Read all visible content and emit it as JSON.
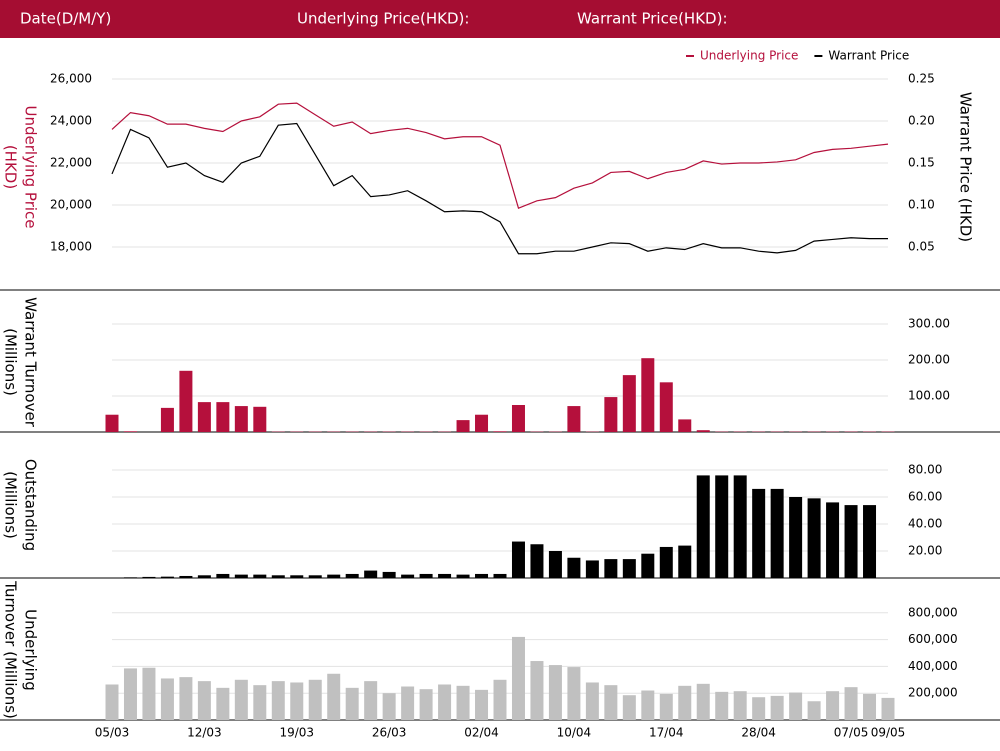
{
  "header": {
    "labels": [
      "Date(D/M/Y)",
      "Underlying Price(HKD):",
      "Warrant Price(HKD):"
    ]
  },
  "chart_data": [
    {
      "type": "line",
      "ylabel": [
        "Underlying Price",
        "(HKD)"
      ],
      "y2label": "Warrant  Price (HKD)",
      "ylim": [
        17000,
        27000
      ],
      "yticks": [
        {
          "value": 18000,
          "label": "18,000"
        },
        {
          "value": 20000,
          "label": "20,000"
        },
        {
          "value": 22000,
          "label": "22,000"
        },
        {
          "value": 24000,
          "label": "24,000"
        },
        {
          "value": 26000,
          "label": "26,000"
        }
      ],
      "y2lim": [
        0.025,
        0.275
      ],
      "y2ticks": [
        0.05,
        {
          "value": 0.1,
          "label": "0.10"
        },
        0.15,
        {
          "value": 0.2,
          "label": "0.20"
        },
        0.25
      ],
      "grid": true,
      "legend": "top-right",
      "series": [
        {
          "name": "Underlying Price",
          "color": "#b5103c",
          "values": [
            23600,
            24400,
            24250,
            23850,
            23850,
            23650,
            23500,
            24000,
            24200,
            24800,
            24850,
            24300,
            23750,
            23950,
            23400,
            23550,
            23650,
            23450,
            23150,
            23250,
            23250,
            22850,
            19850,
            20200,
            20350,
            20800,
            21050,
            21550,
            21600,
            21250,
            21550,
            21700,
            22100,
            21950,
            22000,
            22000,
            22050,
            22150,
            22500,
            22650,
            22700,
            22800,
            22900
          ]
        },
        {
          "name": "Warrant Price",
          "color": "#000000",
          "axis": "y2",
          "values": [
            0.137,
            0.19,
            0.18,
            0.145,
            0.15,
            0.135,
            0.127,
            0.15,
            0.158,
            0.195,
            0.197,
            0.16,
            0.123,
            0.135,
            0.11,
            0.112,
            0.117,
            0.105,
            0.092,
            0.093,
            0.092,
            0.08,
            0.042,
            0.042,
            0.045,
            0.045,
            0.05,
            0.055,
            0.054,
            0.045,
            0.049,
            0.047,
            0.054,
            0.049,
            0.049,
            0.045,
            0.043,
            0.046,
            0.057,
            0.059,
            0.061,
            0.06,
            0.06
          ]
        }
      ]
    },
    {
      "type": "bar",
      "ylabel": [
        "Warrant  Turnover",
        "(Millions)"
      ],
      "color": "#b5103c",
      "ylim": [
        0,
        350
      ],
      "yticks": [
        {
          "value": 100,
          "label": "100.00"
        },
        {
          "value": 200,
          "label": "200.00"
        },
        {
          "value": 300,
          "label": "300.00"
        }
      ],
      "grid": true,
      "values": [
        48,
        2,
        0,
        67,
        170,
        83,
        83,
        72,
        70,
        1,
        1,
        1,
        1,
        1,
        1,
        1,
        1,
        1,
        1,
        33,
        48,
        2,
        75,
        1,
        1,
        72,
        1,
        97,
        158,
        205,
        138,
        35,
        5,
        1,
        1,
        1,
        1,
        1,
        1,
        1,
        1,
        1,
        1
      ]
    },
    {
      "type": "bar",
      "ylabel": [
        "Outstanding",
        "(Millions)"
      ],
      "color": "#000000",
      "ylim": [
        0,
        100
      ],
      "yticks": [
        {
          "value": 20,
          "label": "20.00"
        },
        {
          "value": 40,
          "label": "40.00"
        },
        {
          "value": 60,
          "label": "60.00"
        },
        {
          "value": 80,
          "label": "80.00"
        }
      ],
      "grid": true,
      "values": [
        0,
        0.5,
        0.8,
        1,
        1.5,
        2,
        3,
        2.5,
        2.5,
        2,
        2,
        2,
        2.5,
        3,
        5.5,
        4.5,
        2.5,
        3,
        3,
        2.5,
        3,
        3,
        27,
        25,
        20,
        15,
        13,
        14,
        14,
        18,
        23,
        24,
        76,
        76,
        76,
        66,
        66,
        60,
        59,
        56,
        54,
        54,
        0
      ]
    },
    {
      "type": "bar",
      "ylabel": [
        "Underlying",
        "Turnover (Millions)"
      ],
      "color": "#c0c0c0",
      "ylim": [
        0,
        1000000
      ],
      "yticks": [
        {
          "value": 200000,
          "label": "200,000"
        },
        {
          "value": 400000,
          "label": "400,000"
        },
        {
          "value": 600000,
          "label": "600,000"
        },
        {
          "value": 800000,
          "label": "800,000"
        }
      ],
      "grid": true,
      "categories": [
        "05/03",
        null,
        null,
        null,
        null,
        "12/03",
        null,
        null,
        null,
        null,
        "19/03",
        null,
        null,
        null,
        null,
        "26/03",
        null,
        null,
        null,
        null,
        "02/04",
        null,
        null,
        null,
        null,
        "10/04",
        null,
        null,
        null,
        null,
        "17/04",
        null,
        null,
        null,
        null,
        "28/04",
        null,
        null,
        null,
        null,
        "07/05",
        null,
        "09/05"
      ],
      "values": [
        265000,
        385000,
        390000,
        310000,
        320000,
        290000,
        240000,
        300000,
        260000,
        290000,
        280000,
        300000,
        345000,
        240000,
        290000,
        200000,
        250000,
        230000,
        265000,
        255000,
        225000,
        300000,
        620000,
        440000,
        410000,
        395000,
        280000,
        260000,
        185000,
        220000,
        195000,
        255000,
        270000,
        210000,
        215000,
        170000,
        180000,
        205000,
        140000,
        215000,
        245000,
        195000,
        165000
      ]
    }
  ]
}
